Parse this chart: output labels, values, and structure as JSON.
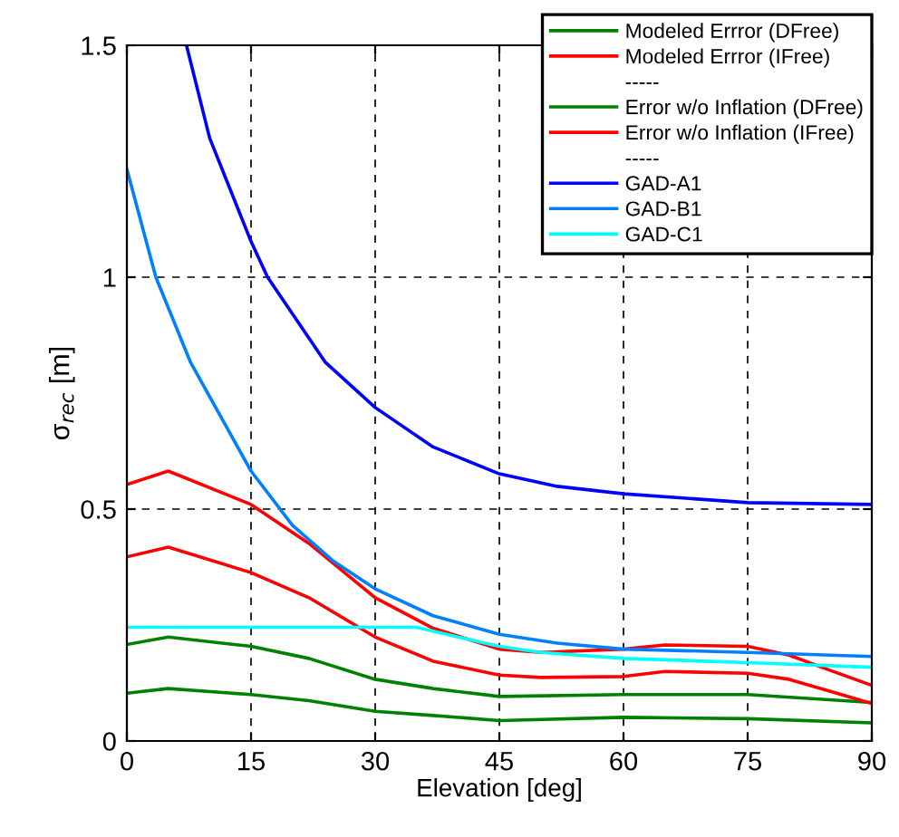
{
  "chart_data": {
    "type": "line",
    "xlabel": "Elevation [deg]",
    "ylabel": "σ$_{rec}$ [m]",
    "xlim": [
      0,
      90
    ],
    "ylim": [
      0,
      1.5
    ],
    "xticks": [
      0,
      15,
      30,
      45,
      60,
      75,
      90
    ],
    "yticks": [
      0,
      0.5,
      1,
      1.5
    ],
    "grid": true,
    "legend": "top right",
    "line_style": "solid",
    "marker": "none",
    "series": [
      {
        "name": "Modeled Errror (DFree)",
        "color": "#008000",
        "x": [
          0,
          5,
          15,
          22,
          30,
          37,
          45,
          60,
          75,
          90
        ],
        "values": [
          0.208,
          0.224,
          0.204,
          0.178,
          0.133,
          0.113,
          0.096,
          0.1,
          0.1,
          0.083
        ]
      },
      {
        "name": "Modeled Errror (IFree)",
        "color": "#ff0000",
        "x": [
          0,
          5,
          15,
          22,
          30,
          37,
          45,
          50,
          60,
          65,
          75,
          80,
          85,
          90
        ],
        "values": [
          0.553,
          0.582,
          0.51,
          0.426,
          0.309,
          0.243,
          0.198,
          0.191,
          0.198,
          0.207,
          0.204,
          0.185,
          0.152,
          0.12
        ]
      },
      {
        "name": "-----"
      },
      {
        "name": "Error w/o Inflation (DFree)",
        "color": "#008000",
        "x": [
          0,
          5,
          15,
          22,
          30,
          37,
          45,
          60,
          75,
          90
        ],
        "values": [
          0.103,
          0.113,
          0.1,
          0.087,
          0.064,
          0.055,
          0.044,
          0.051,
          0.048,
          0.039
        ]
      },
      {
        "name": "Error w/o Inflation (IFree)",
        "color": "#ff0000",
        "x": [
          0,
          5,
          15,
          22,
          30,
          37,
          45,
          50,
          60,
          65,
          75,
          80,
          85,
          90
        ],
        "values": [
          0.397,
          0.418,
          0.363,
          0.309,
          0.224,
          0.172,
          0.142,
          0.137,
          0.139,
          0.15,
          0.146,
          0.133,
          0.107,
          0.081
        ]
      },
      {
        "name": "-----"
      },
      {
        "name": "GAD-A1",
        "color": "#0000ff",
        "x": [
          7.2,
          10,
          15,
          17,
          24,
          30,
          37,
          45,
          52,
          60,
          75,
          90
        ],
        "values": [
          1.5,
          1.3,
          1.077,
          1.0,
          0.816,
          0.719,
          0.634,
          0.576,
          0.549,
          0.533,
          0.514,
          0.51
        ]
      },
      {
        "name": "GAD-B1",
        "color": "#0080ff",
        "x": [
          0,
          3.5,
          7.7,
          15,
          20,
          25,
          30,
          37,
          45,
          52,
          60,
          75,
          90
        ],
        "values": [
          1.233,
          1.0,
          0.816,
          0.582,
          0.465,
          0.387,
          0.328,
          0.27,
          0.23,
          0.211,
          0.198,
          0.191,
          0.182
        ]
      },
      {
        "name": "GAD-C1",
        "color": "#00ffff",
        "x": [
          0,
          35,
          40,
          45,
          50,
          60,
          75,
          90
        ],
        "values": [
          0.245,
          0.245,
          0.224,
          0.204,
          0.191,
          0.178,
          0.169,
          0.159
        ]
      }
    ]
  }
}
